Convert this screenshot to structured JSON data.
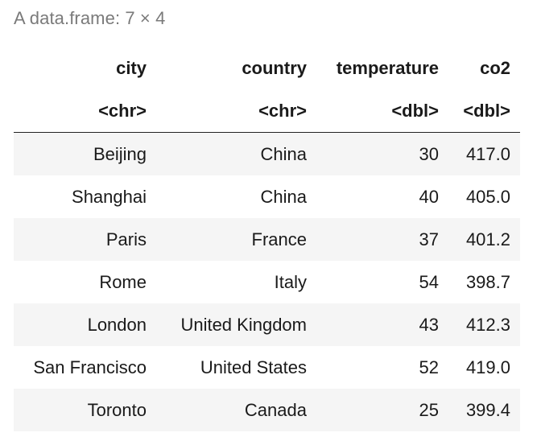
{
  "caption": "A data.frame: 7 × 4",
  "columns": [
    {
      "name": "city",
      "type": "<chr>"
    },
    {
      "name": "country",
      "type": "<chr>"
    },
    {
      "name": "temperature",
      "type": "<dbl>"
    },
    {
      "name": "co2",
      "type": "<dbl>"
    }
  ],
  "rows": [
    {
      "city": "Beijing",
      "country": "China",
      "temperature": "30",
      "co2": "417.0"
    },
    {
      "city": "Shanghai",
      "country": "China",
      "temperature": "40",
      "co2": "405.0"
    },
    {
      "city": "Paris",
      "country": "France",
      "temperature": "37",
      "co2": "401.2"
    },
    {
      "city": "Rome",
      "country": "Italy",
      "temperature": "54",
      "co2": "398.7"
    },
    {
      "city": "London",
      "country": "United Kingdom",
      "temperature": "43",
      "co2": "412.3"
    },
    {
      "city": "San Francisco",
      "country": "United States",
      "temperature": "52",
      "co2": "419.0"
    },
    {
      "city": "Toronto",
      "country": "Canada",
      "temperature": "25",
      "co2": "399.4"
    }
  ]
}
